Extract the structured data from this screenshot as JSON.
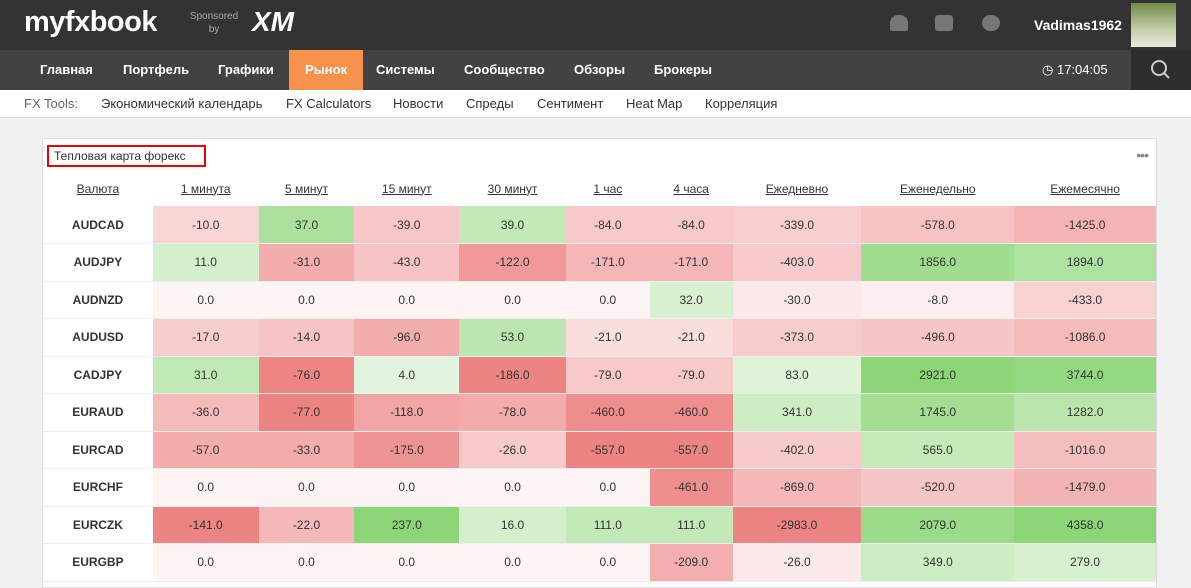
{
  "header": {
    "logo": "myfxbook",
    "sponsored": "Sponsored",
    "by": "by",
    "sponsor": "XM",
    "username": "Vadimas1962",
    "time": "17:04:05"
  },
  "nav": [
    "Главная",
    "Портфель",
    "Графики",
    "Рынок",
    "Системы",
    "Сообщество",
    "Обзоры",
    "Брокеры"
  ],
  "nav_active": 3,
  "tools": {
    "label": "FX Tools:",
    "items": [
      "Экономический календарь",
      "FX Calculators",
      "Новости",
      "Спреды",
      "Сентимент",
      "Heat Map",
      "Корреляция"
    ]
  },
  "panel": {
    "title": "Тепловая карта форекс",
    "menu": "•••"
  },
  "table": {
    "columns": [
      "Валюта",
      "1 минута",
      "5 минут",
      "15 минут",
      "30 минут",
      "1 час",
      "4 часа",
      "Ежедневно",
      "Еженедельно",
      "Ежемесячно"
    ],
    "rows": [
      [
        "AUDCAD",
        "-10.0",
        "37.0",
        "-39.0",
        "39.0",
        "-84.0",
        "-84.0",
        "-339.0",
        "-578.0",
        "-1425.0"
      ],
      [
        "AUDJPY",
        "11.0",
        "-31.0",
        "-43.0",
        "-122.0",
        "-171.0",
        "-171.0",
        "-403.0",
        "1856.0",
        "1894.0"
      ],
      [
        "AUDNZD",
        "0.0",
        "0.0",
        "0.0",
        "0.0",
        "0.0",
        "32.0",
        "-30.0",
        "-8.0",
        "-433.0"
      ],
      [
        "AUDUSD",
        "-17.0",
        "-14.0",
        "-96.0",
        "53.0",
        "-21.0",
        "-21.0",
        "-373.0",
        "-496.0",
        "-1086.0"
      ],
      [
        "CADJPY",
        "31.0",
        "-76.0",
        "4.0",
        "-186.0",
        "-79.0",
        "-79.0",
        "83.0",
        "2921.0",
        "3744.0"
      ],
      [
        "EURAUD",
        "-36.0",
        "-77.0",
        "-118.0",
        "-78.0",
        "-460.0",
        "-460.0",
        "341.0",
        "1745.0",
        "1282.0"
      ],
      [
        "EURCAD",
        "-57.0",
        "-33.0",
        "-175.0",
        "-26.0",
        "-557.0",
        "-557.0",
        "-402.0",
        "565.0",
        "-1016.0"
      ],
      [
        "EURCHF",
        "0.0",
        "0.0",
        "0.0",
        "0.0",
        "0.0",
        "-461.0",
        "-869.0",
        "-520.0",
        "-1479.0"
      ],
      [
        "EURCZK",
        "-141.0",
        "-22.0",
        "237.0",
        "16.0",
        "111.0",
        "111.0",
        "-2983.0",
        "2079.0",
        "4358.0"
      ],
      [
        "EURGBP",
        "0.0",
        "0.0",
        "0.0",
        "0.0",
        "0.0",
        "-209.0",
        "-26.0",
        "349.0",
        "279.0"
      ]
    ]
  }
}
